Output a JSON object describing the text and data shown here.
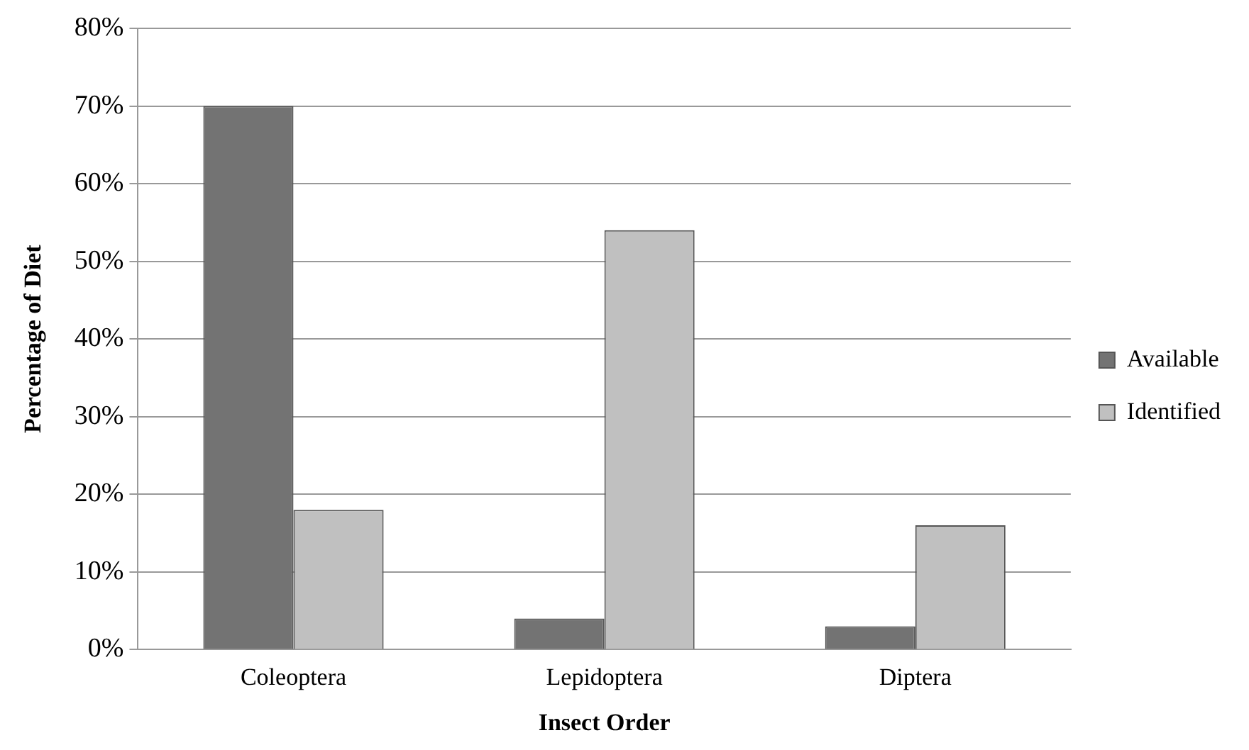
{
  "chart_data": {
    "type": "bar",
    "xlabel": "Insect Order",
    "ylabel": "Percentage of Diet",
    "categories": [
      "Coleoptera",
      "Lepidoptera",
      "Diptera"
    ],
    "series": [
      {
        "name": "Available",
        "color": "#737373",
        "values": [
          70,
          4,
          3
        ]
      },
      {
        "name": "Identified",
        "color": "#c0c0c0",
        "values": [
          18,
          54,
          16
        ]
      }
    ],
    "ylim": [
      0,
      80
    ],
    "yticks": [
      {
        "value": 0,
        "label": "0%"
      },
      {
        "value": 10,
        "label": "10%"
      },
      {
        "value": 20,
        "label": "20%"
      },
      {
        "value": 30,
        "label": "30%"
      },
      {
        "value": 40,
        "label": "40%"
      },
      {
        "value": 50,
        "label": "50%"
      },
      {
        "value": 60,
        "label": "60%"
      },
      {
        "value": 70,
        "label": "70%"
      },
      {
        "value": 80,
        "label": "80%"
      }
    ],
    "grid": "y",
    "legend": "right"
  }
}
